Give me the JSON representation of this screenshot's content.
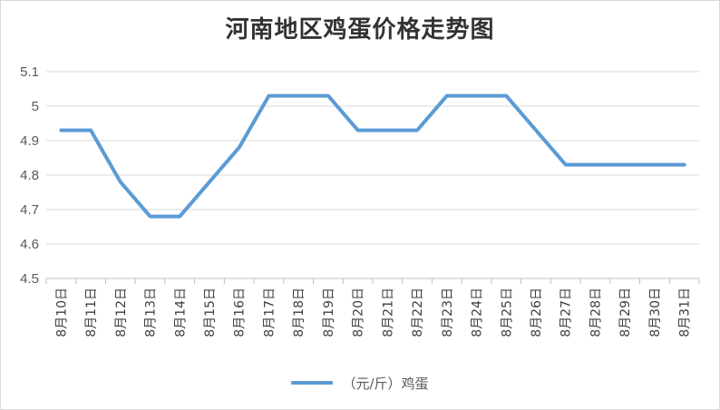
{
  "chart_data": {
    "type": "line",
    "title": "河南地区鸡蛋价格走势图",
    "categories": [
      "8月10日",
      "8月11日",
      "8月12日",
      "8月13日",
      "8月14日",
      "8月15日",
      "8月16日",
      "8月17日",
      "8月18日",
      "8月19日",
      "8月20日",
      "8月21日",
      "8月22日",
      "8月23日",
      "8月24日",
      "8月25日",
      "8月26日",
      "8月27日",
      "8月28日",
      "8月29日",
      "8月30日",
      "8月31日"
    ],
    "series": [
      {
        "name": "（元/斤）鸡蛋",
        "color": "#5b9bd5",
        "values": [
          4.93,
          4.93,
          4.78,
          4.68,
          4.68,
          4.78,
          4.88,
          5.03,
          5.03,
          5.03,
          4.93,
          4.93,
          4.93,
          5.03,
          5.03,
          5.03,
          4.93,
          4.83,
          4.83,
          4.83,
          4.83,
          4.83
        ]
      }
    ],
    "yticks": [
      "4.5",
      "4.6",
      "4.7",
      "4.8",
      "4.9",
      "5",
      "5.1"
    ],
    "ylim": [
      4.5,
      5.1
    ],
    "grid": true,
    "legend": "bottom"
  }
}
